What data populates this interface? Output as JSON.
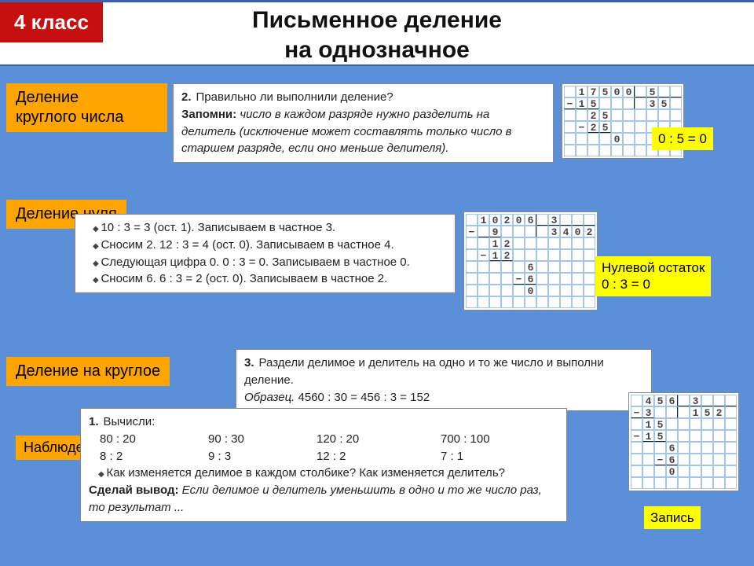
{
  "colors": {
    "page_bg": "#5b8fd8",
    "header_bg": "#ffffff",
    "header_border": "#3d5ea8",
    "badge_bg": "#c60f0f",
    "badge_fg": "#ffffff",
    "label_bg": "#ffa500",
    "note_bg": "#ffff00",
    "panel_bg": "#ffffff",
    "panel_border": "#888888",
    "grid_line": "#a5c6e8",
    "text": "#111111"
  },
  "header": {
    "badge": "4 класс",
    "title_line1": "Письменное деление",
    "title_line2": "на однозначное"
  },
  "labels": {
    "round_number": "Деление\nкруглого числа",
    "zero_division": "Деление нуля",
    "by_round": "Деление на круглое",
    "observations": "Наблюдения"
  },
  "notes": {
    "zero_five": "0 : 5 = 0",
    "zero_remainder_l1": "Нулевой остаток",
    "zero_remainder_l2": "0 : 3 = 0",
    "record": "Запись"
  },
  "panel1": {
    "num": "2.",
    "q": "Правильно ли выполнили деление?",
    "remember_label": "Запомни:",
    "remember_text": "число в каждом разряде нужно разделить на делитель (исключение может составлять только число в старшем разряде, если оно меньше делителя)."
  },
  "panel2": {
    "li1": "10 : 3 = 3 (ост. 1). Записываем в частное 3.",
    "li2": "Сносим 2. 12 : 3 = 4 (ост. 0). Записываем в частное 4.",
    "li3": "Следующая цифра 0. 0 : 3 = 0. Записываем в частное 0.",
    "li4": "Сносим 6. 6 : 3 = 2 (ост. 0). Записываем в частное 2."
  },
  "panel3": {
    "num": "3.",
    "q": "Раздели делимое и делитель на одно и то же число и выполни деление.",
    "sample_label": "Образец.",
    "sample_text": "4560 : 30 = 456 : 3 = 152"
  },
  "panel4": {
    "num": "1.",
    "q": "Вычисли:",
    "row1": {
      "a": "80 : 20",
      "b": "90 : 30",
      "c": "120 : 20",
      "d": "700 : 100"
    },
    "row2": {
      "a": "8 : 2",
      "b": "9 : 3",
      "c": "12 : 2",
      "d": "7 : 1"
    },
    "obs": "Как изменяется делимое в каждом столбике? Как изменяется делитель?",
    "concl_label": "Сделай вывод:",
    "concl_text": "Если делимое и делитель уменьшить в одно и то же число раз, то результат ..."
  },
  "grids": {
    "g1": {
      "cols": 10,
      "rows": 6,
      "cells": [
        [
          "",
          "1",
          "7",
          "5",
          "0",
          "0",
          "",
          "5",
          "",
          ""
        ],
        [
          "−",
          "1",
          "5",
          "",
          "",
          "",
          "",
          "3",
          "5",
          ""
        ],
        [
          "",
          "",
          "2",
          "5",
          "",
          "",
          "",
          "",
          "",
          ""
        ],
        [
          "",
          "−",
          "2",
          "5",
          "",
          "",
          "",
          "",
          "",
          ""
        ],
        [
          "",
          "",
          "",
          "",
          "0",
          "",
          "",
          "",
          "",
          ""
        ],
        [
          "",
          "",
          "",
          "",
          "",
          "",
          "",
          "",
          "",
          ""
        ]
      ],
      "rules": {
        "vline_after_col": 5,
        "hline_below_row0_from": 6,
        "underline": [
          [
            1,
            0,
            2
          ],
          [
            3,
            2,
            3
          ]
        ]
      }
    },
    "g2": {
      "cols": 11,
      "rows": 8,
      "cells": [
        [
          "",
          "1",
          "0",
          "2",
          "0",
          "6",
          "",
          "3",
          "",
          "",
          ""
        ],
        [
          "−",
          "",
          "9",
          "",
          "",
          "",
          "",
          "3",
          "4",
          "0",
          "2"
        ],
        [
          "",
          "",
          "1",
          "2",
          "",
          "",
          "",
          "",
          "",
          "",
          ""
        ],
        [
          "",
          "−",
          "1",
          "2",
          "",
          "",
          "",
          "",
          "",
          "",
          ""
        ],
        [
          "",
          "",
          "",
          "",
          "",
          "6",
          "",
          "",
          "",
          "",
          ""
        ],
        [
          "",
          "",
          "",
          "",
          "−",
          "6",
          "",
          "",
          "",
          "",
          ""
        ],
        [
          "",
          "",
          "",
          "",
          "",
          "0",
          "",
          "",
          "",
          "",
          ""
        ],
        [
          "",
          "",
          "",
          "",
          "",
          "",
          "",
          "",
          "",
          "",
          ""
        ]
      ],
      "rules": {
        "vline_after_col": 5,
        "hline_below_row0_from": 6,
        "underline": [
          [
            1,
            1,
            2
          ],
          [
            3,
            2,
            3
          ],
          [
            5,
            4,
            5
          ]
        ]
      }
    },
    "g3": {
      "cols": 9,
      "rows": 8,
      "cells": [
        [
          "",
          "4",
          "5",
          "6",
          "",
          "3",
          "",
          "",
          ""
        ],
        [
          "−",
          "3",
          "",
          "",
          "",
          "1",
          "5",
          "2",
          ""
        ],
        [
          "",
          "1",
          "5",
          "",
          "",
          "",
          "",
          "",
          ""
        ],
        [
          "−",
          "1",
          "5",
          "",
          "",
          "",
          "",
          "",
          ""
        ],
        [
          "",
          "",
          "",
          "6",
          "",
          "",
          "",
          "",
          ""
        ],
        [
          "",
          "",
          "−",
          "6",
          "",
          "",
          "",
          "",
          ""
        ],
        [
          "",
          "",
          "",
          "0",
          "",
          "",
          "",
          "",
          ""
        ],
        [
          "",
          "",
          "",
          "",
          "",
          "",
          "",
          "",
          ""
        ]
      ],
      "rules": {
        "vline_after_col": 3,
        "hline_below_row0_from": 4,
        "underline": [
          [
            1,
            0,
            1
          ],
          [
            3,
            1,
            2
          ],
          [
            5,
            2,
            3
          ]
        ]
      }
    }
  }
}
